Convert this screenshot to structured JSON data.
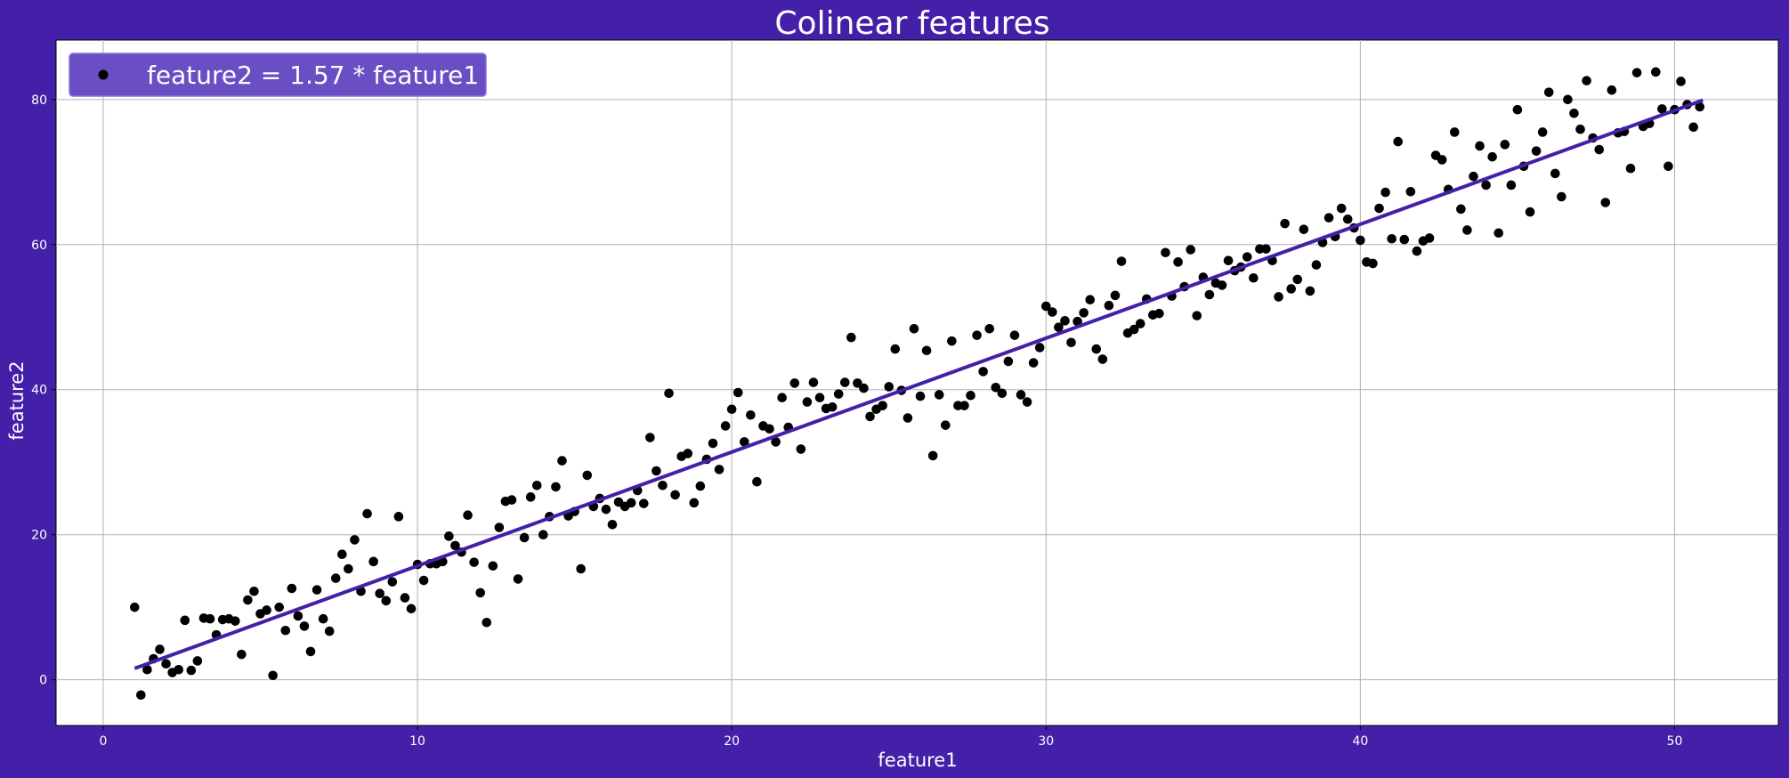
{
  "chart_data": {
    "type": "scatter",
    "title": "Colinear features",
    "xlabel": "feature1",
    "ylabel": "feature2",
    "xlim": [
      -1.5,
      53.3
    ],
    "ylim": [
      -6.3,
      88.2
    ],
    "xticks": [
      0,
      10,
      20,
      30,
      40,
      50
    ],
    "yticks": [
      0,
      20,
      40,
      60,
      80
    ],
    "grid": true,
    "legend": {
      "position": "top-left",
      "entries": [
        "feature2 = 1.57 * feature1"
      ]
    },
    "colors": {
      "background": "#4420a8",
      "plot_area": "#ffffff",
      "points": "#000000",
      "fit_line": "#4420a8",
      "legend_box": "#6a4fc4",
      "grid": "#b0b0b0"
    },
    "fit_line": {
      "slope": 1.57,
      "intercept": 0,
      "x": [
        1.0,
        50.9
      ]
    },
    "series": [
      {
        "name": "feature2 = 1.57 * feature1",
        "points": [
          [
            1.0,
            10.0
          ],
          [
            1.2,
            -2.1
          ],
          [
            1.4,
            1.4
          ],
          [
            1.6,
            2.9
          ],
          [
            1.8,
            4.2
          ],
          [
            2.0,
            2.2
          ],
          [
            2.2,
            1.0
          ],
          [
            2.4,
            1.4
          ],
          [
            2.6,
            8.2
          ],
          [
            2.8,
            1.3
          ],
          [
            3.0,
            2.6
          ],
          [
            3.2,
            8.5
          ],
          [
            3.4,
            8.4
          ],
          [
            3.6,
            6.2
          ],
          [
            3.8,
            8.3
          ],
          [
            4.0,
            8.4
          ],
          [
            4.2,
            8.1
          ],
          [
            4.4,
            3.5
          ],
          [
            4.6,
            11.0
          ],
          [
            4.8,
            12.2
          ],
          [
            5.0,
            9.1
          ],
          [
            5.2,
            9.6
          ],
          [
            5.4,
            0.6
          ],
          [
            5.6,
            10.0
          ],
          [
            5.8,
            6.8
          ],
          [
            6.0,
            12.6
          ],
          [
            6.2,
            8.8
          ],
          [
            6.4,
            7.4
          ],
          [
            6.6,
            3.9
          ],
          [
            6.8,
            12.4
          ],
          [
            7.0,
            8.4
          ],
          [
            7.2,
            6.7
          ],
          [
            7.4,
            14.0
          ],
          [
            7.6,
            17.3
          ],
          [
            7.8,
            15.3
          ],
          [
            8.0,
            19.3
          ],
          [
            8.2,
            12.2
          ],
          [
            8.4,
            22.9
          ],
          [
            8.6,
            16.3
          ],
          [
            8.8,
            11.9
          ],
          [
            9.0,
            10.9
          ],
          [
            9.2,
            13.5
          ],
          [
            9.4,
            22.5
          ],
          [
            9.6,
            11.3
          ],
          [
            9.8,
            9.8
          ],
          [
            10.0,
            15.9
          ],
          [
            10.2,
            13.7
          ],
          [
            10.4,
            16.0
          ],
          [
            10.6,
            16.0
          ],
          [
            10.8,
            16.3
          ],
          [
            11.0,
            19.8
          ],
          [
            11.2,
            18.5
          ],
          [
            11.4,
            17.6
          ],
          [
            11.6,
            22.7
          ],
          [
            11.8,
            16.2
          ],
          [
            12.0,
            12.0
          ],
          [
            12.2,
            7.9
          ],
          [
            12.4,
            15.7
          ],
          [
            12.6,
            21.0
          ],
          [
            12.8,
            24.6
          ],
          [
            13.0,
            24.8
          ],
          [
            13.2,
            13.9
          ],
          [
            13.4,
            19.6
          ],
          [
            13.6,
            25.2
          ],
          [
            13.8,
            26.8
          ],
          [
            14.0,
            20.0
          ],
          [
            14.2,
            22.5
          ],
          [
            14.4,
            26.6
          ],
          [
            14.6,
            30.2
          ],
          [
            14.8,
            22.6
          ],
          [
            15.0,
            23.2
          ],
          [
            15.2,
            15.3
          ],
          [
            15.4,
            28.2
          ],
          [
            15.6,
            23.9
          ],
          [
            15.8,
            25.0
          ],
          [
            16.0,
            23.5
          ],
          [
            16.2,
            21.4
          ],
          [
            16.4,
            24.5
          ],
          [
            16.6,
            23.9
          ],
          [
            16.8,
            24.4
          ],
          [
            17.0,
            26.1
          ],
          [
            17.2,
            24.3
          ],
          [
            17.4,
            33.4
          ],
          [
            17.6,
            28.8
          ],
          [
            17.8,
            26.8
          ],
          [
            18.0,
            39.5
          ],
          [
            18.2,
            25.5
          ],
          [
            18.4,
            30.8
          ],
          [
            18.6,
            31.2
          ],
          [
            18.8,
            24.4
          ],
          [
            19.0,
            26.7
          ],
          [
            19.2,
            30.4
          ],
          [
            19.4,
            32.6
          ],
          [
            19.6,
            29.0
          ],
          [
            19.8,
            35.0
          ],
          [
            20.0,
            37.3
          ],
          [
            20.2,
            39.6
          ],
          [
            20.4,
            32.8
          ],
          [
            20.6,
            36.5
          ],
          [
            20.8,
            27.3
          ],
          [
            21.0,
            35.0
          ],
          [
            21.2,
            34.6
          ],
          [
            21.4,
            32.8
          ],
          [
            21.6,
            38.9
          ],
          [
            21.8,
            34.8
          ],
          [
            22.0,
            40.9
          ],
          [
            22.2,
            31.8
          ],
          [
            22.4,
            38.3
          ],
          [
            22.6,
            41.0
          ],
          [
            22.8,
            38.9
          ],
          [
            23.0,
            37.4
          ],
          [
            23.2,
            37.6
          ],
          [
            23.4,
            39.4
          ],
          [
            23.6,
            41.0
          ],
          [
            23.8,
            47.2
          ],
          [
            24.0,
            40.9
          ],
          [
            24.2,
            40.2
          ],
          [
            24.4,
            36.3
          ],
          [
            24.6,
            37.3
          ],
          [
            24.8,
            37.8
          ],
          [
            25.0,
            40.4
          ],
          [
            25.2,
            45.6
          ],
          [
            25.4,
            39.9
          ],
          [
            25.6,
            36.1
          ],
          [
            25.8,
            48.4
          ],
          [
            26.0,
            39.1
          ],
          [
            26.2,
            45.4
          ],
          [
            26.4,
            30.9
          ],
          [
            26.6,
            39.3
          ],
          [
            26.8,
            35.1
          ],
          [
            27.0,
            46.7
          ],
          [
            27.2,
            37.8
          ],
          [
            27.4,
            37.8
          ],
          [
            27.6,
            39.2
          ],
          [
            27.8,
            47.5
          ],
          [
            28.0,
            42.5
          ],
          [
            28.2,
            48.4
          ],
          [
            28.4,
            40.3
          ],
          [
            28.6,
            39.5
          ],
          [
            28.8,
            43.9
          ],
          [
            29.0,
            47.5
          ],
          [
            29.2,
            39.3
          ],
          [
            29.4,
            38.3
          ],
          [
            29.6,
            43.7
          ],
          [
            29.8,
            45.8
          ],
          [
            30.0,
            51.5
          ],
          [
            30.2,
            50.7
          ],
          [
            30.4,
            48.6
          ],
          [
            30.6,
            49.5
          ],
          [
            30.8,
            46.5
          ],
          [
            31.0,
            49.4
          ],
          [
            31.2,
            50.6
          ],
          [
            31.4,
            52.4
          ],
          [
            31.6,
            45.6
          ],
          [
            31.8,
            44.2
          ],
          [
            32.0,
            51.6
          ],
          [
            32.2,
            53.0
          ],
          [
            32.4,
            57.7
          ],
          [
            32.6,
            47.8
          ],
          [
            32.8,
            48.3
          ],
          [
            33.0,
            49.1
          ],
          [
            33.2,
            52.5
          ],
          [
            33.4,
            50.3
          ],
          [
            33.6,
            50.5
          ],
          [
            33.8,
            58.9
          ],
          [
            34.0,
            52.9
          ],
          [
            34.2,
            57.6
          ],
          [
            34.4,
            54.2
          ],
          [
            34.6,
            59.3
          ],
          [
            34.8,
            50.2
          ],
          [
            35.0,
            55.5
          ],
          [
            35.2,
            53.1
          ],
          [
            35.4,
            54.7
          ],
          [
            35.6,
            54.4
          ],
          [
            35.8,
            57.8
          ],
          [
            36.0,
            56.4
          ],
          [
            36.2,
            56.9
          ],
          [
            36.4,
            58.3
          ],
          [
            36.6,
            55.4
          ],
          [
            36.8,
            59.4
          ],
          [
            37.0,
            59.4
          ],
          [
            37.2,
            57.8
          ],
          [
            37.4,
            52.8
          ],
          [
            37.6,
            62.9
          ],
          [
            37.8,
            53.9
          ],
          [
            38.0,
            55.2
          ],
          [
            38.2,
            62.1
          ],
          [
            38.4,
            53.6
          ],
          [
            38.6,
            57.2
          ],
          [
            38.8,
            60.3
          ],
          [
            39.0,
            63.7
          ],
          [
            39.2,
            61.1
          ],
          [
            39.4,
            65.0
          ],
          [
            39.6,
            63.5
          ],
          [
            39.8,
            62.3
          ],
          [
            40.0,
            60.6
          ],
          [
            40.2,
            57.6
          ],
          [
            40.4,
            57.4
          ],
          [
            40.6,
            65.0
          ],
          [
            40.8,
            67.2
          ],
          [
            41.0,
            60.8
          ],
          [
            41.2,
            74.2
          ],
          [
            41.4,
            60.7
          ],
          [
            41.6,
            67.3
          ],
          [
            41.8,
            59.1
          ],
          [
            42.0,
            60.5
          ],
          [
            42.2,
            60.9
          ],
          [
            42.4,
            72.3
          ],
          [
            42.6,
            71.7
          ],
          [
            42.8,
            67.6
          ],
          [
            43.0,
            75.5
          ],
          [
            43.2,
            64.9
          ],
          [
            43.4,
            62.0
          ],
          [
            43.6,
            69.4
          ],
          [
            43.8,
            73.6
          ],
          [
            44.0,
            68.2
          ],
          [
            44.2,
            72.1
          ],
          [
            44.4,
            61.6
          ],
          [
            44.6,
            73.8
          ],
          [
            44.8,
            68.2
          ],
          [
            45.0,
            78.6
          ],
          [
            45.2,
            70.8
          ],
          [
            45.4,
            64.5
          ],
          [
            45.6,
            72.9
          ],
          [
            45.8,
            75.5
          ],
          [
            46.0,
            81.0
          ],
          [
            46.2,
            69.8
          ],
          [
            46.4,
            66.6
          ],
          [
            46.6,
            80.0
          ],
          [
            46.8,
            78.1
          ],
          [
            47.0,
            75.9
          ],
          [
            47.2,
            82.6
          ],
          [
            47.4,
            74.7
          ],
          [
            47.6,
            73.1
          ],
          [
            47.8,
            65.8
          ],
          [
            48.0,
            81.3
          ],
          [
            48.2,
            75.4
          ],
          [
            48.4,
            75.6
          ],
          [
            48.6,
            70.5
          ],
          [
            48.8,
            83.7
          ],
          [
            49.0,
            76.3
          ],
          [
            49.2,
            76.7
          ],
          [
            49.4,
            83.8
          ],
          [
            49.6,
            78.7
          ],
          [
            49.8,
            70.8
          ],
          [
            50.0,
            78.6
          ],
          [
            50.2,
            82.5
          ],
          [
            50.4,
            79.3
          ],
          [
            50.6,
            76.2
          ],
          [
            50.8,
            79.0
          ]
        ]
      }
    ]
  }
}
